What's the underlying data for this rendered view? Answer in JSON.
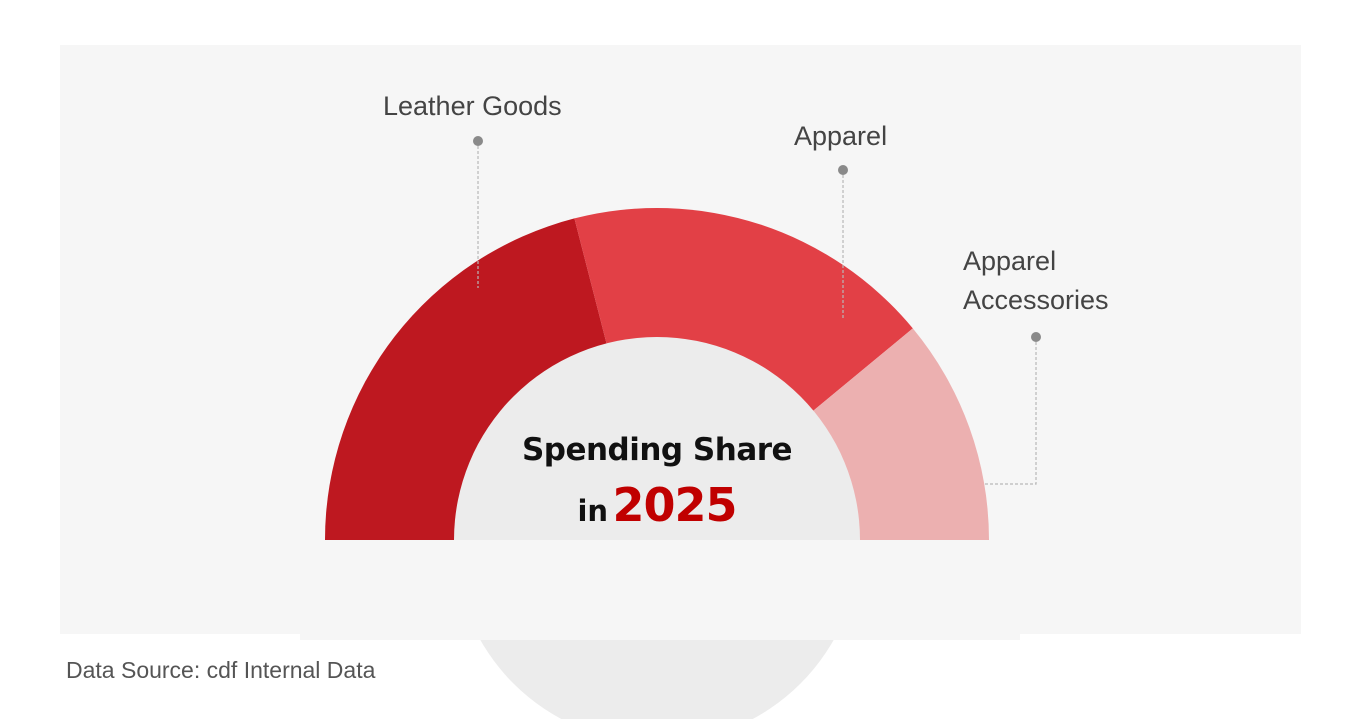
{
  "chart_data": {
    "type": "pie",
    "variant": "semi-donut",
    "categories": [
      "Leather Goods",
      "Apparel",
      "Apparel Accessories"
    ],
    "values": [
      42,
      36,
      22
    ],
    "colors": [
      "#be1820",
      "#e24046",
      "#ecb0b0"
    ],
    "title": "Spending Share",
    "title_prefix": "in",
    "year": "2025",
    "xlabel": "",
    "ylabel": ""
  },
  "source": "Data Source: cdf Internal Data",
  "colors": {
    "panel_bg": "#f6f6f6",
    "inner_disc": "#ececec",
    "accent": "#c00000"
  }
}
